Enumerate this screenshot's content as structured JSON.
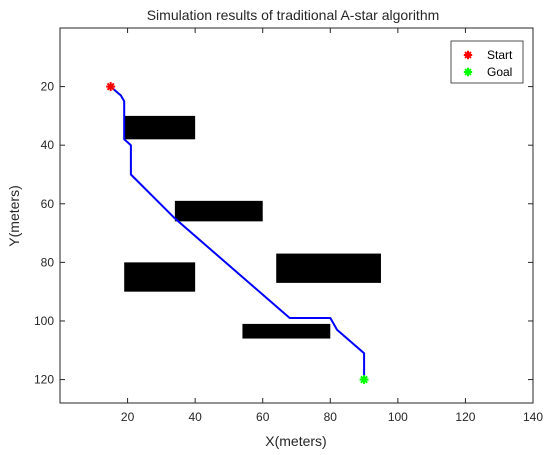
{
  "chart_data": {
    "type": "scatter",
    "title": "Simulation results of traditional A-star algorithm",
    "xlabel": "X(meters)",
    "ylabel": "Y(meters)",
    "xlim": [
      0,
      140
    ],
    "ylim": [
      0,
      128
    ],
    "y_reversed": true,
    "x_ticks": [
      20,
      40,
      60,
      80,
      100,
      120,
      140
    ],
    "y_ticks": [
      20,
      40,
      60,
      80,
      100,
      120
    ],
    "grid": false,
    "legend_position": "top-right",
    "obstacles": [
      {
        "x1": 19,
        "x2": 40,
        "y1": 30,
        "y2": 38
      },
      {
        "x1": 34,
        "x2": 60,
        "y1": 59,
        "y2": 66
      },
      {
        "x1": 19,
        "x2": 40,
        "y1": 80,
        "y2": 90
      },
      {
        "x1": 64,
        "x2": 95,
        "y1": 77,
        "y2": 87
      },
      {
        "x1": 54,
        "x2": 80,
        "y1": 101,
        "y2": 106
      }
    ],
    "series": [
      {
        "name": "Start",
        "color": "#ff0000",
        "marker": "asterisk",
        "x": [
          15
        ],
        "y": [
          20
        ]
      },
      {
        "name": "Goal",
        "color": "#00ff00",
        "marker": "asterisk",
        "x": [
          90
        ],
        "y": [
          120
        ]
      }
    ],
    "path": {
      "color": "#0000ff",
      "x": [
        15,
        17,
        18,
        19,
        19,
        20,
        21,
        21,
        34,
        35,
        68,
        80,
        81,
        82,
        90,
        90
      ],
      "y": [
        20,
        22,
        23,
        25,
        38,
        39,
        40,
        50,
        65,
        66,
        99,
        99,
        101,
        103,
        111,
        120
      ]
    }
  }
}
